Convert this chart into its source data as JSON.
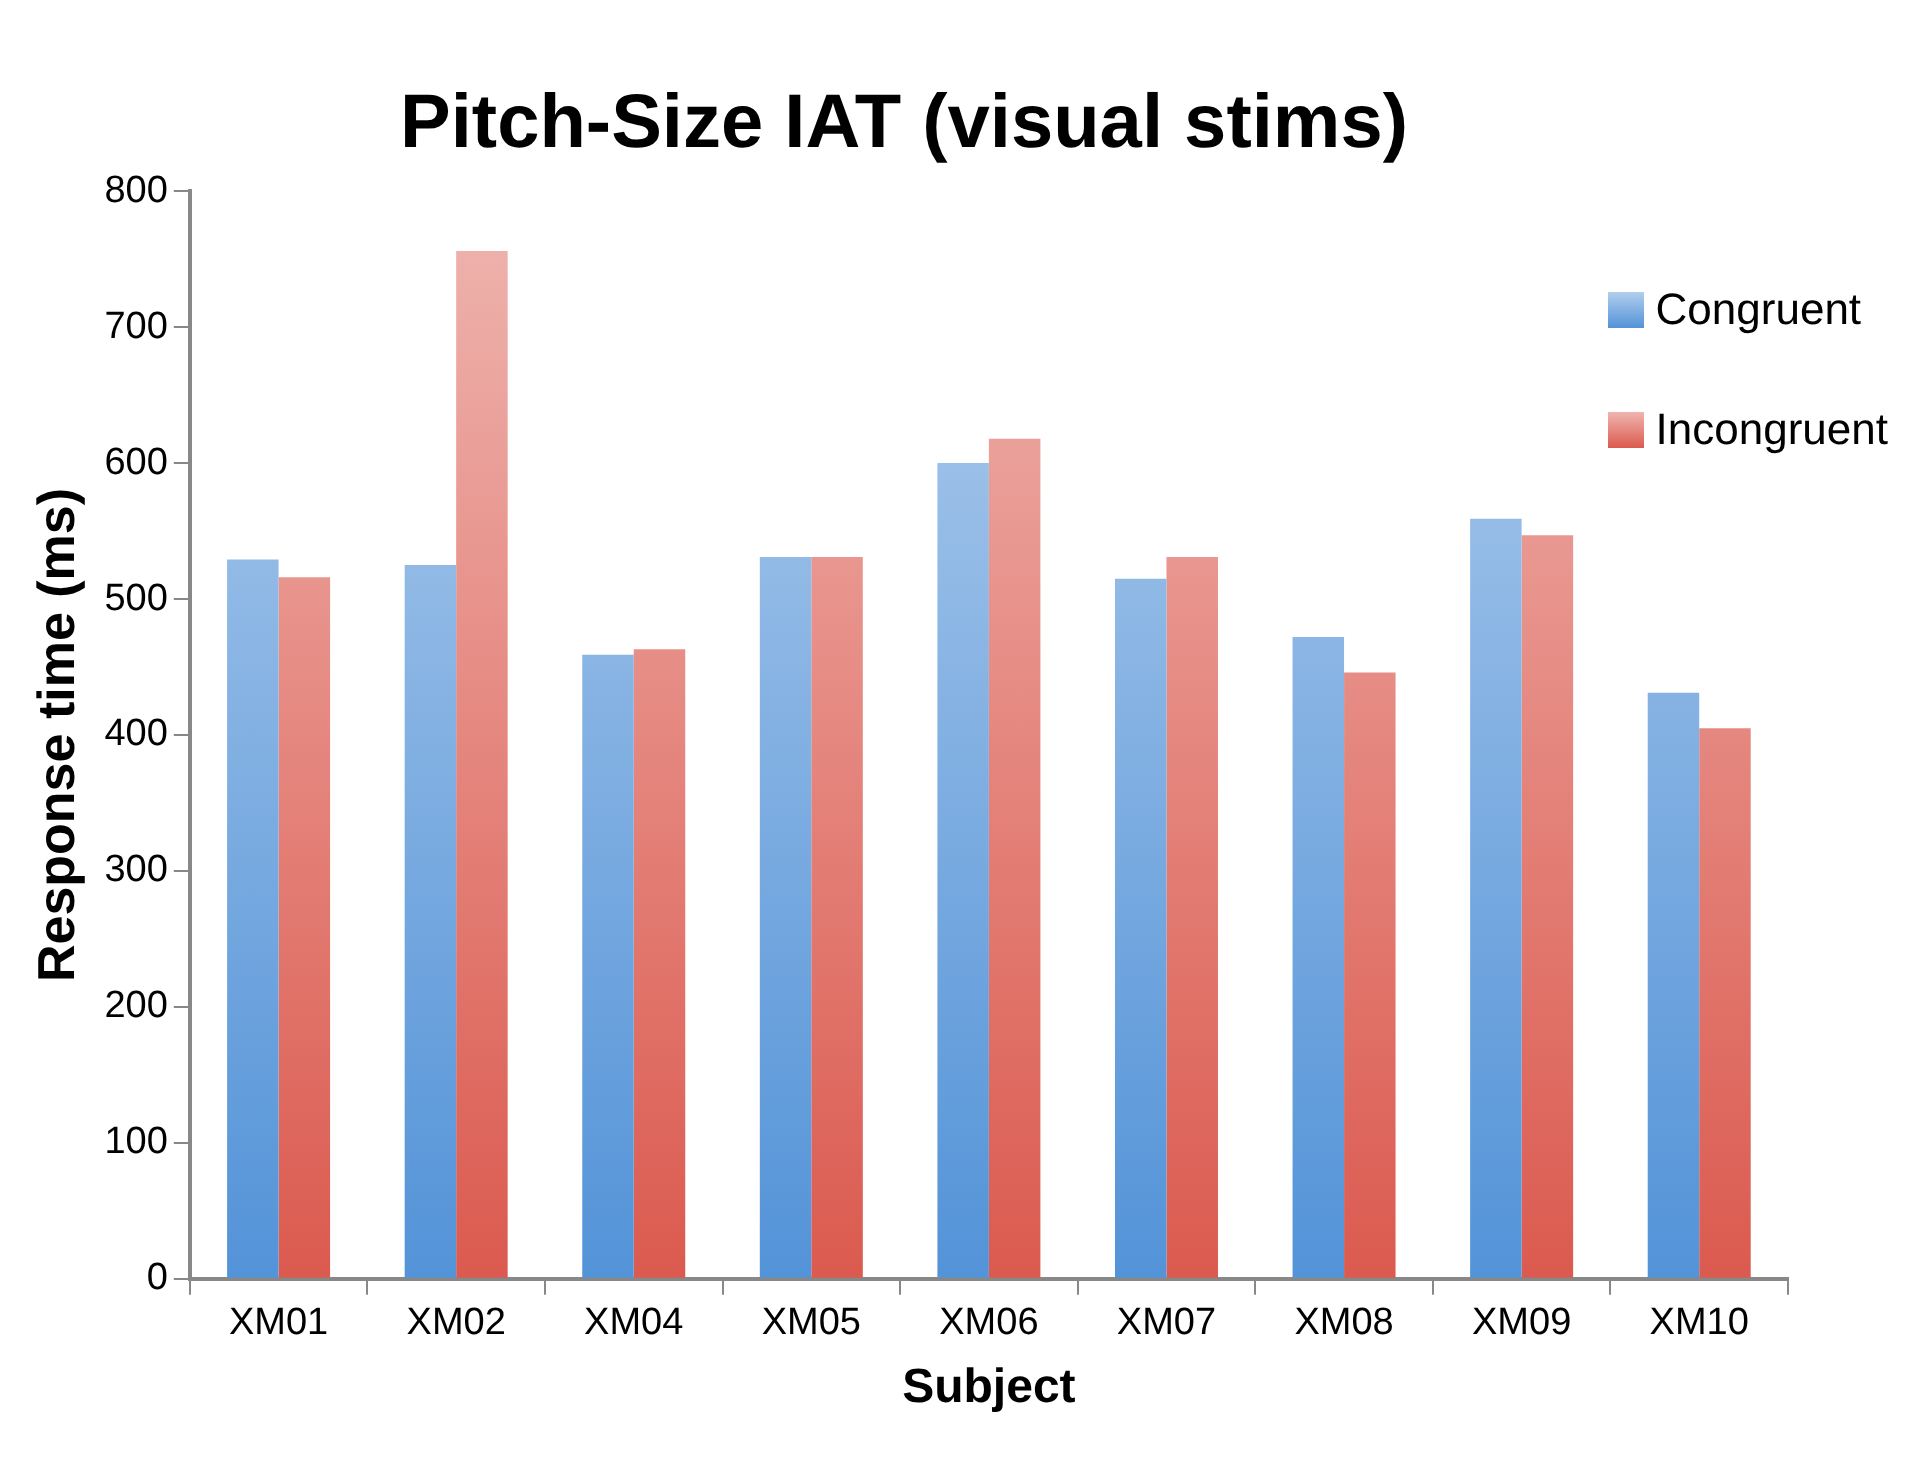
{
  "chart_data": {
    "type": "bar",
    "title": "Pitch-Size IAT (visual stims)",
    "xlabel": "Subject",
    "ylabel": "Response time (ms)",
    "categories": [
      "XM01",
      "XM02",
      "XM04",
      "XM05",
      "XM06",
      "XM07",
      "XM08",
      "XM09",
      "XM10"
    ],
    "series": [
      {
        "name": "Congruent",
        "color": "#5393d8",
        "values": [
          529,
          525,
          459,
          531,
          600,
          515,
          472,
          559,
          431
        ]
      },
      {
        "name": "Incongruent",
        "color": "#db5a4f",
        "values": [
          516,
          756,
          463,
          531,
          618,
          531,
          446,
          547,
          405
        ]
      }
    ],
    "ylim": [
      0,
      800
    ],
    "yticks": [
      0,
      100,
      200,
      300,
      400,
      500,
      600,
      700,
      800
    ],
    "grid": false,
    "legend": "top right"
  }
}
